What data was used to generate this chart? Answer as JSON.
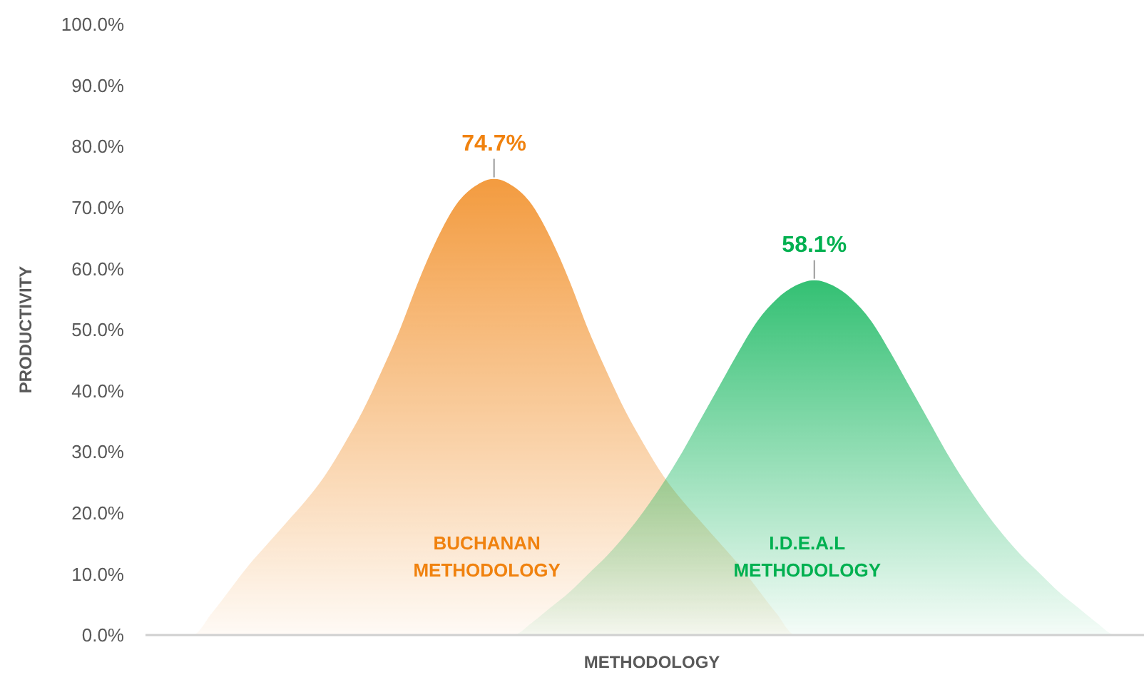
{
  "chart_data": {
    "type": "area",
    "xlabel": "METHODOLOGY",
    "ylabel": "PRODUCTIVITY",
    "categories": [
      null,
      null,
      null,
      null,
      null,
      null,
      null,
      null,
      null,
      null,
      null,
      null,
      null,
      null,
      null,
      null,
      null,
      null,
      null,
      null,
      null,
      null,
      null,
      null,
      null,
      null,
      null,
      null,
      null,
      null,
      null,
      null,
      null,
      null,
      null,
      null,
      null,
      null,
      null,
      null,
      null,
      null,
      null,
      null,
      null,
      null,
      null,
      null,
      null,
      null,
      null,
      null,
      null
    ],
    "series": [
      {
        "name": "BUCHANAN METHODOLOGY",
        "color": "#f0820f",
        "values": [
          0,
          0,
          0,
          3.5,
          7.5,
          11.5,
          15,
          18.5,
          22,
          26,
          31,
          36.5,
          43,
          50,
          58,
          65,
          70.5,
          73.5,
          74.7,
          73.5,
          70.5,
          65,
          58,
          50,
          43,
          36.5,
          31,
          26,
          22,
          18.5,
          15,
          11.5,
          7.5,
          3.5,
          0,
          0,
          0,
          0,
          0,
          0,
          0,
          0,
          0,
          0,
          0,
          0,
          0,
          0,
          0,
          0,
          0,
          0,
          0
        ],
        "value_labels": [
          null,
          null,
          null,
          null,
          null,
          null,
          null,
          null,
          null,
          null,
          null,
          null,
          null,
          null,
          null,
          null,
          null,
          null,
          "74.7%",
          null,
          null,
          null,
          null,
          null,
          null,
          null,
          null,
          null,
          null,
          null,
          null,
          null,
          null,
          null,
          null,
          null,
          null,
          null,
          null,
          null,
          null,
          null,
          null,
          null,
          null,
          null,
          null,
          null,
          null,
          null,
          null,
          null,
          null
        ]
      },
      {
        "name": "I.D.E.A.L METHODOLOGY",
        "color": "#00b050",
        "values": [
          0,
          0,
          0,
          0,
          0,
          0,
          0,
          0,
          0,
          0,
          0,
          0,
          0,
          0,
          0,
          0,
          0,
          0,
          0,
          0,
          2,
          4.5,
          7,
          10,
          13,
          16.5,
          20.5,
          25,
          30,
          35.5,
          41,
          46.5,
          51.5,
          55,
          57.2,
          58.1,
          57.2,
          55,
          51.5,
          46.5,
          41,
          35.5,
          30,
          25,
          20.5,
          16.5,
          13,
          10,
          7,
          4.5,
          2,
          0,
          0
        ],
        "value_labels": [
          null,
          null,
          null,
          null,
          null,
          null,
          null,
          null,
          null,
          null,
          null,
          null,
          null,
          null,
          null,
          null,
          null,
          null,
          null,
          null,
          null,
          null,
          null,
          null,
          null,
          null,
          null,
          null,
          null,
          null,
          null,
          null,
          null,
          null,
          null,
          "58.1%",
          null,
          null,
          null,
          null,
          null,
          null,
          null,
          null,
          null,
          null,
          null,
          null,
          null,
          null,
          null,
          null,
          null
        ]
      }
    ],
    "ylim": [
      0,
      100
    ],
    "yticks": [
      {
        "value": 0,
        "label": "0.0%"
      },
      {
        "value": 10,
        "label": "10.0%"
      },
      {
        "value": 20,
        "label": "20.0%"
      },
      {
        "value": 30,
        "label": "30.0%"
      },
      {
        "value": 40,
        "label": "40.0%"
      },
      {
        "value": 50,
        "label": "50.0%"
      },
      {
        "value": 60,
        "label": "60.0%"
      },
      {
        "value": 70,
        "label": "70.0%"
      },
      {
        "value": 80,
        "label": "80.0%"
      },
      {
        "value": 90,
        "label": "90.0%"
      },
      {
        "value": 100,
        "label": "100.0%"
      }
    ],
    "grid": false
  }
}
